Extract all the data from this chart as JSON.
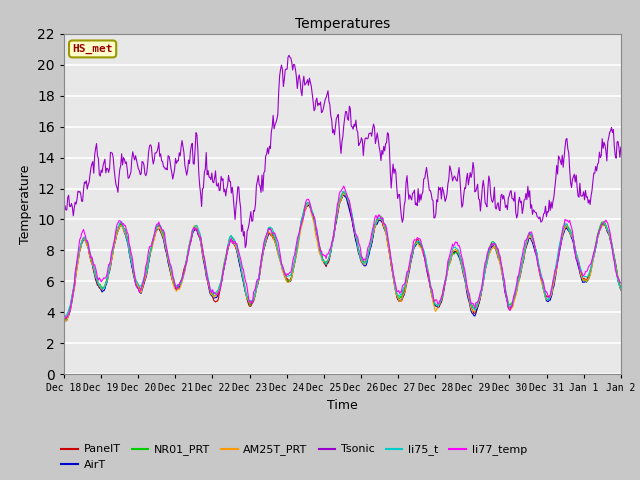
{
  "title": "Temperatures",
  "xlabel": "Time",
  "ylabel": "Temperature",
  "series_colors": {
    "PanelT": "#cc0000",
    "AirT": "#0000cc",
    "NR01_PRT": "#00cc00",
    "AM25T_PRT": "#ff9900",
    "Tsonic": "#9900cc",
    "li75_t": "#00cccc",
    "li77_temp": "#ff00ff"
  },
  "legend_label": "HS_met",
  "legend_label_color": "#990000",
  "legend_bg": "#ffffcc",
  "legend_border": "#999900",
  "ylim": [
    0,
    22
  ],
  "yticks": [
    0,
    2,
    4,
    6,
    8,
    10,
    12,
    14,
    16,
    18,
    20,
    22
  ],
  "figsize": [
    6.4,
    4.8
  ],
  "dpi": 100
}
